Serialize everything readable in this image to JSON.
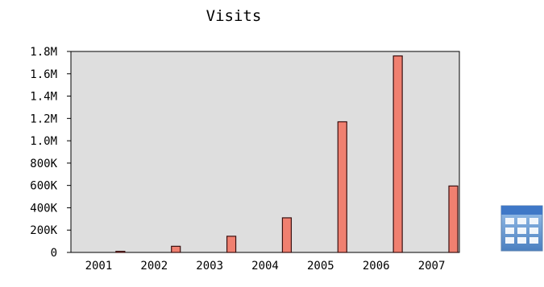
{
  "chart_data": {
    "type": "bar",
    "title": "Visits",
    "xlabel": "",
    "ylabel": "",
    "categories": [
      "2001",
      "2002",
      "2003",
      "2004",
      "2005",
      "2006",
      "2007"
    ],
    "values": [
      10000,
      55000,
      145000,
      310000,
      1170000,
      1760000,
      595000
    ],
    "ylim": [
      0,
      1800000
    ],
    "yticks": [
      0,
      200000,
      400000,
      600000,
      800000,
      1000000,
      1200000,
      1400000,
      1600000,
      1800000
    ],
    "ytick_labels": [
      "0",
      "200K",
      "400K",
      "600K",
      "800K",
      "1.0M",
      "1.2M",
      "1.4M",
      "1.6M",
      "1.8M"
    ],
    "grid": false,
    "legend": "none",
    "colors": {
      "plot_background": "#dedede",
      "bar_fill": "#f08070",
      "bar_stroke": "#3a1010",
      "axis": "#000000"
    }
  },
  "table_view_icon": "table-icon"
}
